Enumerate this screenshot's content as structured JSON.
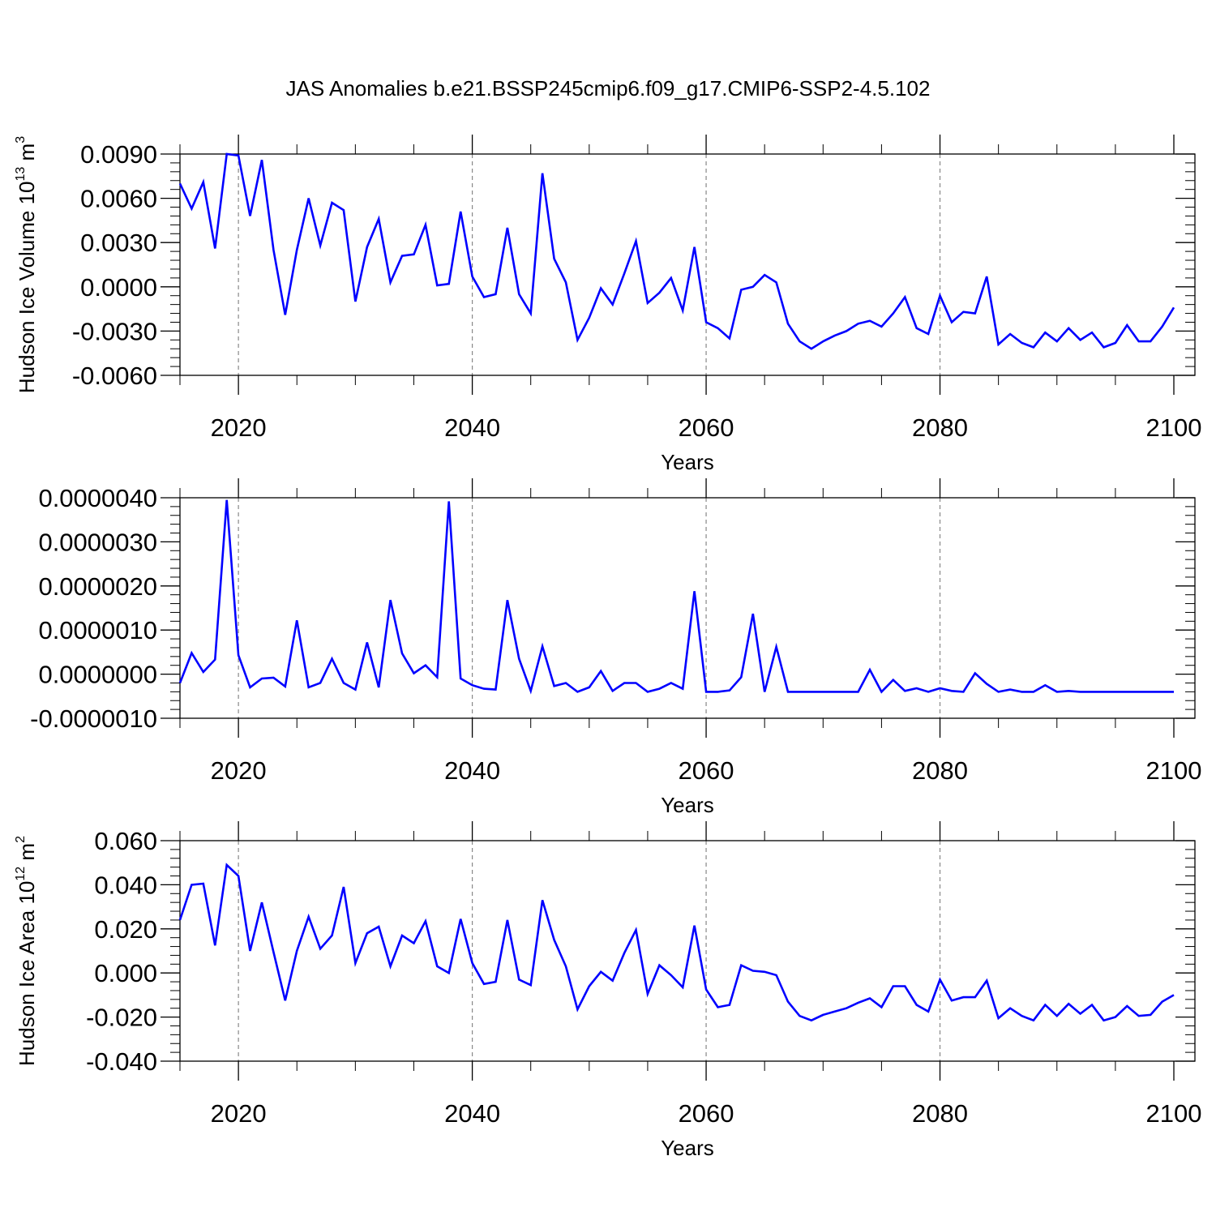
{
  "title": "JAS Anomalies b.e21.BSSP245cmip6.f09_g17.CMIP6-SSP2-4.5.102",
  "colors": {
    "line": "#0000ff",
    "axis": "#000000",
    "grid": "#888888"
  },
  "chart_data": [
    {
      "type": "line",
      "ylabel": {
        "prefix": "Hudson Ice Volume 10",
        "exp": "13",
        "unit": " m",
        "unitexp": "3"
      },
      "xlabel": "Years",
      "xlim": [
        2015,
        2100
      ],
      "ylim": [
        -0.006,
        0.009
      ],
      "yticks": [
        -0.006,
        -0.003,
        0.0,
        0.003,
        0.006,
        0.009
      ],
      "ytick_labels": [
        "-0.0060",
        "-0.0030",
        "0.0000",
        "0.0030",
        "0.0060",
        "0.0090"
      ],
      "xticks": [
        2020,
        2040,
        2060,
        2080,
        2100
      ],
      "xtick_labels": [
        "2020",
        "2040",
        "2060",
        "2080",
        "2100"
      ],
      "grid_x": [
        2020,
        2040,
        2060,
        2080
      ],
      "start_year": 2015,
      "values": [
        0.007,
        0.0053,
        0.0071,
        0.0026,
        0.009,
        0.0089,
        0.0048,
        0.0086,
        0.0025,
        -0.0019,
        0.0025,
        0.006,
        0.0028,
        0.0057,
        0.0052,
        -0.001,
        0.0027,
        0.0046,
        0.0003,
        0.0021,
        0.0022,
        0.0042,
        0.0001,
        0.0002,
        0.0051,
        0.0007,
        -0.0007,
        -0.0005,
        0.004,
        -0.0005,
        -0.0018,
        0.0077,
        0.0019,
        0.0003,
        -0.0036,
        -0.0021,
        -0.0001,
        -0.0012,
        0.0009,
        0.0031,
        -0.0011,
        -0.0004,
        0.0006,
        -0.0016,
        0.0027,
        -0.0024,
        -0.0028,
        -0.0035,
        -0.0002,
        0.0,
        0.0008,
        0.0003,
        -0.0025,
        -0.0037,
        -0.0042,
        -0.0037,
        -0.0033,
        -0.003,
        -0.0025,
        -0.0023,
        -0.0027,
        -0.0018,
        -0.0007,
        -0.0028,
        -0.0032,
        -0.0006,
        -0.0024,
        -0.0017,
        -0.0018,
        0.0007,
        -0.0039,
        -0.0032,
        -0.0038,
        -0.0041,
        -0.0031,
        -0.0037,
        -0.0028,
        -0.0036,
        -0.0031,
        -0.0041,
        -0.0038,
        -0.0026,
        -0.0037,
        -0.0037,
        -0.0027,
        -0.0014
      ]
    },
    {
      "type": "line",
      "ylabel": null,
      "xlabel": "Years",
      "xlim": [
        2015,
        2100
      ],
      "ylim": [
        -1e-06,
        4e-06
      ],
      "yticks": [
        -1e-06,
        0.0,
        1e-06,
        2e-06,
        3e-06,
        4e-06
      ],
      "ytick_labels": [
        "-0.0000010",
        "0.0000000",
        "0.0000010",
        "0.0000020",
        "0.0000030",
        "0.0000040"
      ],
      "xticks": [
        2020,
        2040,
        2060,
        2080,
        2100
      ],
      "xtick_labels": [
        "2020",
        "2040",
        "2060",
        "2080",
        "2100"
      ],
      "grid_x": [
        2020,
        2040,
        2060,
        2080
      ],
      "start_year": 2015,
      "values": [
        -2e-07,
        4.8e-07,
        5e-08,
        3.3e-07,
        3.95e-06,
        4.3e-07,
        -3e-07,
        -1e-07,
        -8e-08,
        -2.8e-07,
        1.22e-06,
        -3e-07,
        -2e-07,
        3.5e-07,
        -2e-07,
        -3.5e-07,
        7.2e-07,
        -3e-07,
        1.68e-06,
        4.7e-07,
        2e-08,
        2e-07,
        -7e-08,
        3.92e-06,
        -1e-07,
        -2.5e-07,
        -3.3e-07,
        -3.5e-07,
        1.68e-06,
        3.5e-07,
        -3.8e-07,
        6.3e-07,
        -2.7e-07,
        -2e-07,
        -4e-07,
        -3e-07,
        7e-08,
        -3.8e-07,
        -2e-07,
        -2e-07,
        -4e-07,
        -3.3e-07,
        -2e-07,
        -3.3e-07,
        1.88e-06,
        -4e-07,
        -4e-07,
        -3.7e-07,
        -7e-08,
        1.37e-06,
        -4e-07,
        6.2e-07,
        -4e-07,
        -4e-07,
        -4e-07,
        -4e-07,
        -4e-07,
        -4e-07,
        -4e-07,
        1e-07,
        -4e-07,
        -1.3e-07,
        -3.8e-07,
        -3.2e-07,
        -4e-07,
        -3.2e-07,
        -3.8e-07,
        -4e-07,
        2e-08,
        -2.2e-07,
        -4e-07,
        -3.5e-07,
        -4e-07,
        -4e-07,
        -2.5e-07,
        -4e-07,
        -3.8e-07,
        -4e-07,
        -4e-07,
        -4e-07,
        -4e-07,
        -4e-07,
        -4e-07,
        -4e-07,
        -4e-07,
        -4e-07
      ]
    },
    {
      "type": "line",
      "ylabel": {
        "prefix": "Hudson Ice Area 10",
        "exp": "12",
        "unit": " m",
        "unitexp": "2"
      },
      "xlabel": "Years",
      "xlim": [
        2015,
        2100
      ],
      "ylim": [
        -0.04,
        0.06
      ],
      "yticks": [
        -0.04,
        -0.02,
        0.0,
        0.02,
        0.04,
        0.06
      ],
      "ytick_labels": [
        "-0.040",
        "-0.020",
        "0.000",
        "0.020",
        "0.040",
        "0.060"
      ],
      "xticks": [
        2020,
        2040,
        2060,
        2080,
        2100
      ],
      "xtick_labels": [
        "2020",
        "2040",
        "2060",
        "2080",
        "2100"
      ],
      "grid_x": [
        2020,
        2040,
        2060,
        2080
      ],
      "start_year": 2015,
      "values": [
        0.024,
        0.04,
        0.0405,
        0.0125,
        0.049,
        0.044,
        0.01,
        0.032,
        0.0095,
        -0.0125,
        0.01,
        0.0255,
        0.011,
        0.017,
        0.039,
        0.0045,
        0.018,
        0.021,
        0.003,
        0.017,
        0.0135,
        0.0235,
        0.003,
        0.0,
        0.0245,
        0.0045,
        -0.005,
        -0.004,
        0.024,
        -0.003,
        -0.0055,
        0.033,
        0.015,
        0.003,
        -0.0165,
        -0.006,
        0.0005,
        -0.0035,
        0.009,
        0.0195,
        -0.0095,
        0.0035,
        -0.001,
        -0.0065,
        0.0215,
        -0.0075,
        -0.0155,
        -0.0145,
        0.0035,
        0.001,
        0.0005,
        -0.001,
        -0.013,
        -0.0195,
        -0.0215,
        -0.019,
        -0.0175,
        -0.016,
        -0.0135,
        -0.0115,
        -0.0155,
        -0.006,
        -0.006,
        -0.0145,
        -0.0175,
        -0.003,
        -0.0125,
        -0.011,
        -0.011,
        -0.0035,
        -0.0205,
        -0.016,
        -0.0195,
        -0.0215,
        -0.0145,
        -0.0195,
        -0.014,
        -0.0185,
        -0.0145,
        -0.0215,
        -0.02,
        -0.015,
        -0.0195,
        -0.019,
        -0.013,
        -0.01
      ]
    }
  ]
}
